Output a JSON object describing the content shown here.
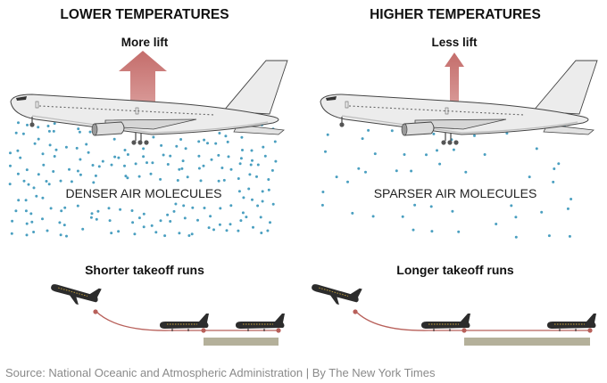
{
  "colors": {
    "molecule": "#4a9fc0",
    "lift_arrow": "#c97a78",
    "path_line": "#b8605a",
    "runway": "#b4b09a",
    "fuselage": "#ececec",
    "outline": "#333333",
    "text_source": "#8a8a8a"
  },
  "panels": {
    "left": {
      "heading": "LOWER TEMPERATURES",
      "lift_label": "More lift",
      "molecule_label": "DENSER AIR MOLECULES",
      "takeoff_label": "Shorter takeoff runs",
      "lift_strength": "strong",
      "air_density": "dense",
      "runway_length": "short"
    },
    "right": {
      "heading": "HIGHER TEMPERATURES",
      "lift_label": "Less lift",
      "molecule_label": "SPARSER AIR MOLECULES",
      "takeoff_label": "Longer takeoff runs",
      "lift_strength": "weak",
      "air_density": "sparse",
      "runway_length": "long"
    }
  },
  "source": "Source: National Oceanic and Atmospheric Administration | By The New York Times"
}
